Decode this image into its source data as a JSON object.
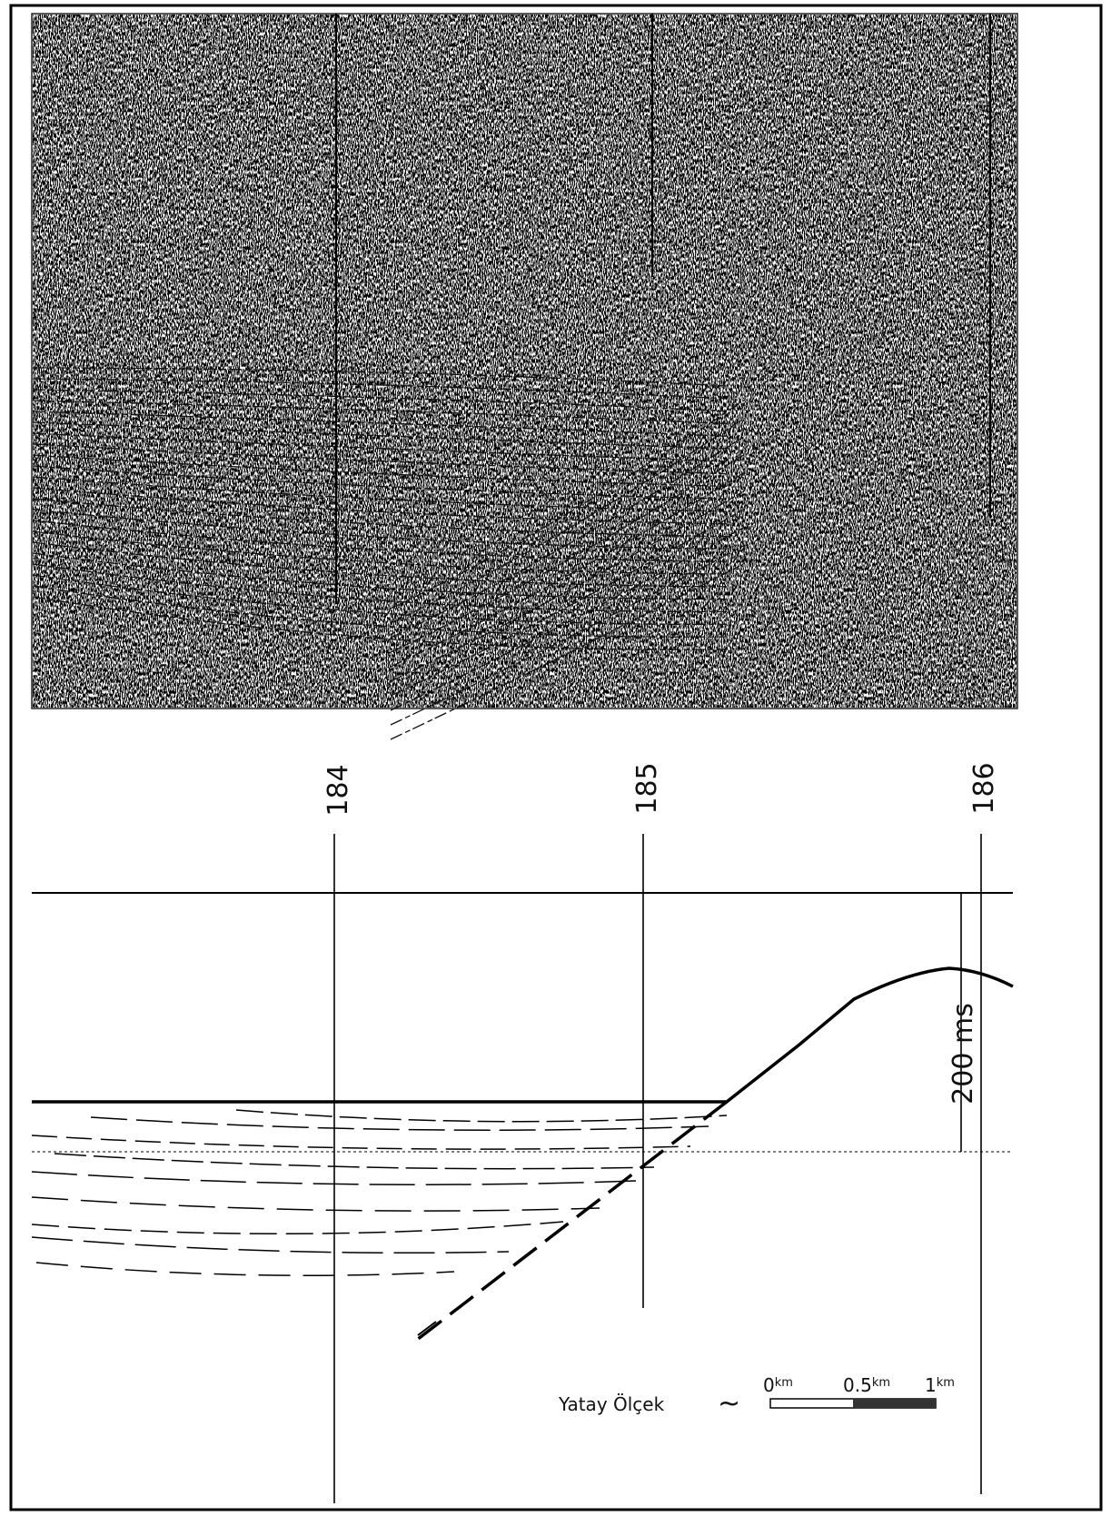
{
  "shotpoints": {
    "labels": [
      "184",
      "185",
      "186"
    ]
  },
  "time_scale": {
    "label": "200 ms"
  },
  "horizontal_scale": {
    "label": "Yatay Ölçek",
    "symbol": "~",
    "ticks": [
      {
        "number": "0",
        "unit": "km"
      },
      {
        "number": "0.5",
        "unit": "km"
      },
      {
        "number": "1",
        "unit": "km"
      }
    ]
  }
}
